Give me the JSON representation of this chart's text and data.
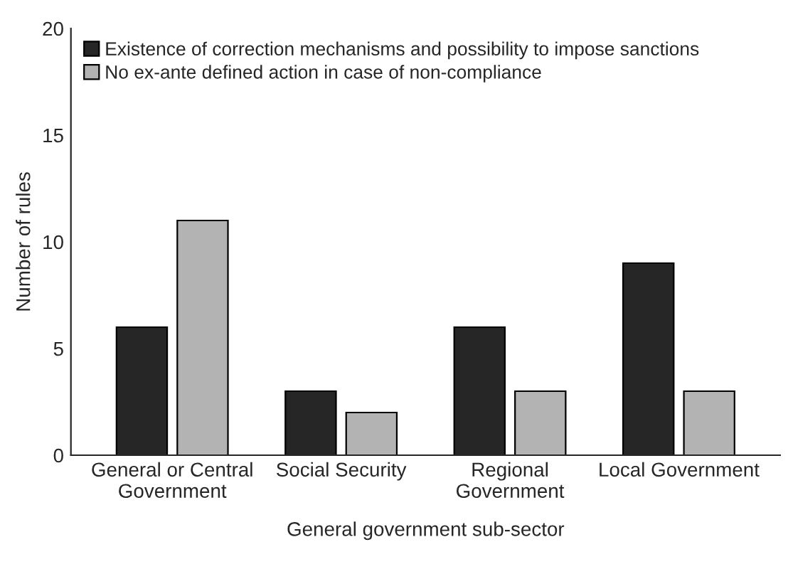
{
  "chart_data": {
    "type": "bar",
    "categories": [
      "General or Central\nGovernment",
      "Social Security",
      "Regional\nGovernment",
      "Local Government"
    ],
    "series": [
      {
        "name": "Existence of correction mechanisms and possibility to impose sanctions",
        "color": "#262626",
        "values": [
          6,
          3,
          6,
          9
        ]
      },
      {
        "name": "No ex-ante defined action in case of non-compliance",
        "color": "#b3b3b3",
        "values": [
          11,
          2,
          3,
          3
        ]
      }
    ],
    "xlabel": "General government sub-sector",
    "ylabel": "Number of rules",
    "ylim": [
      0,
      20
    ],
    "yticks": [
      0,
      5,
      10,
      15,
      20
    ],
    "grid": false,
    "legend": "top left"
  }
}
